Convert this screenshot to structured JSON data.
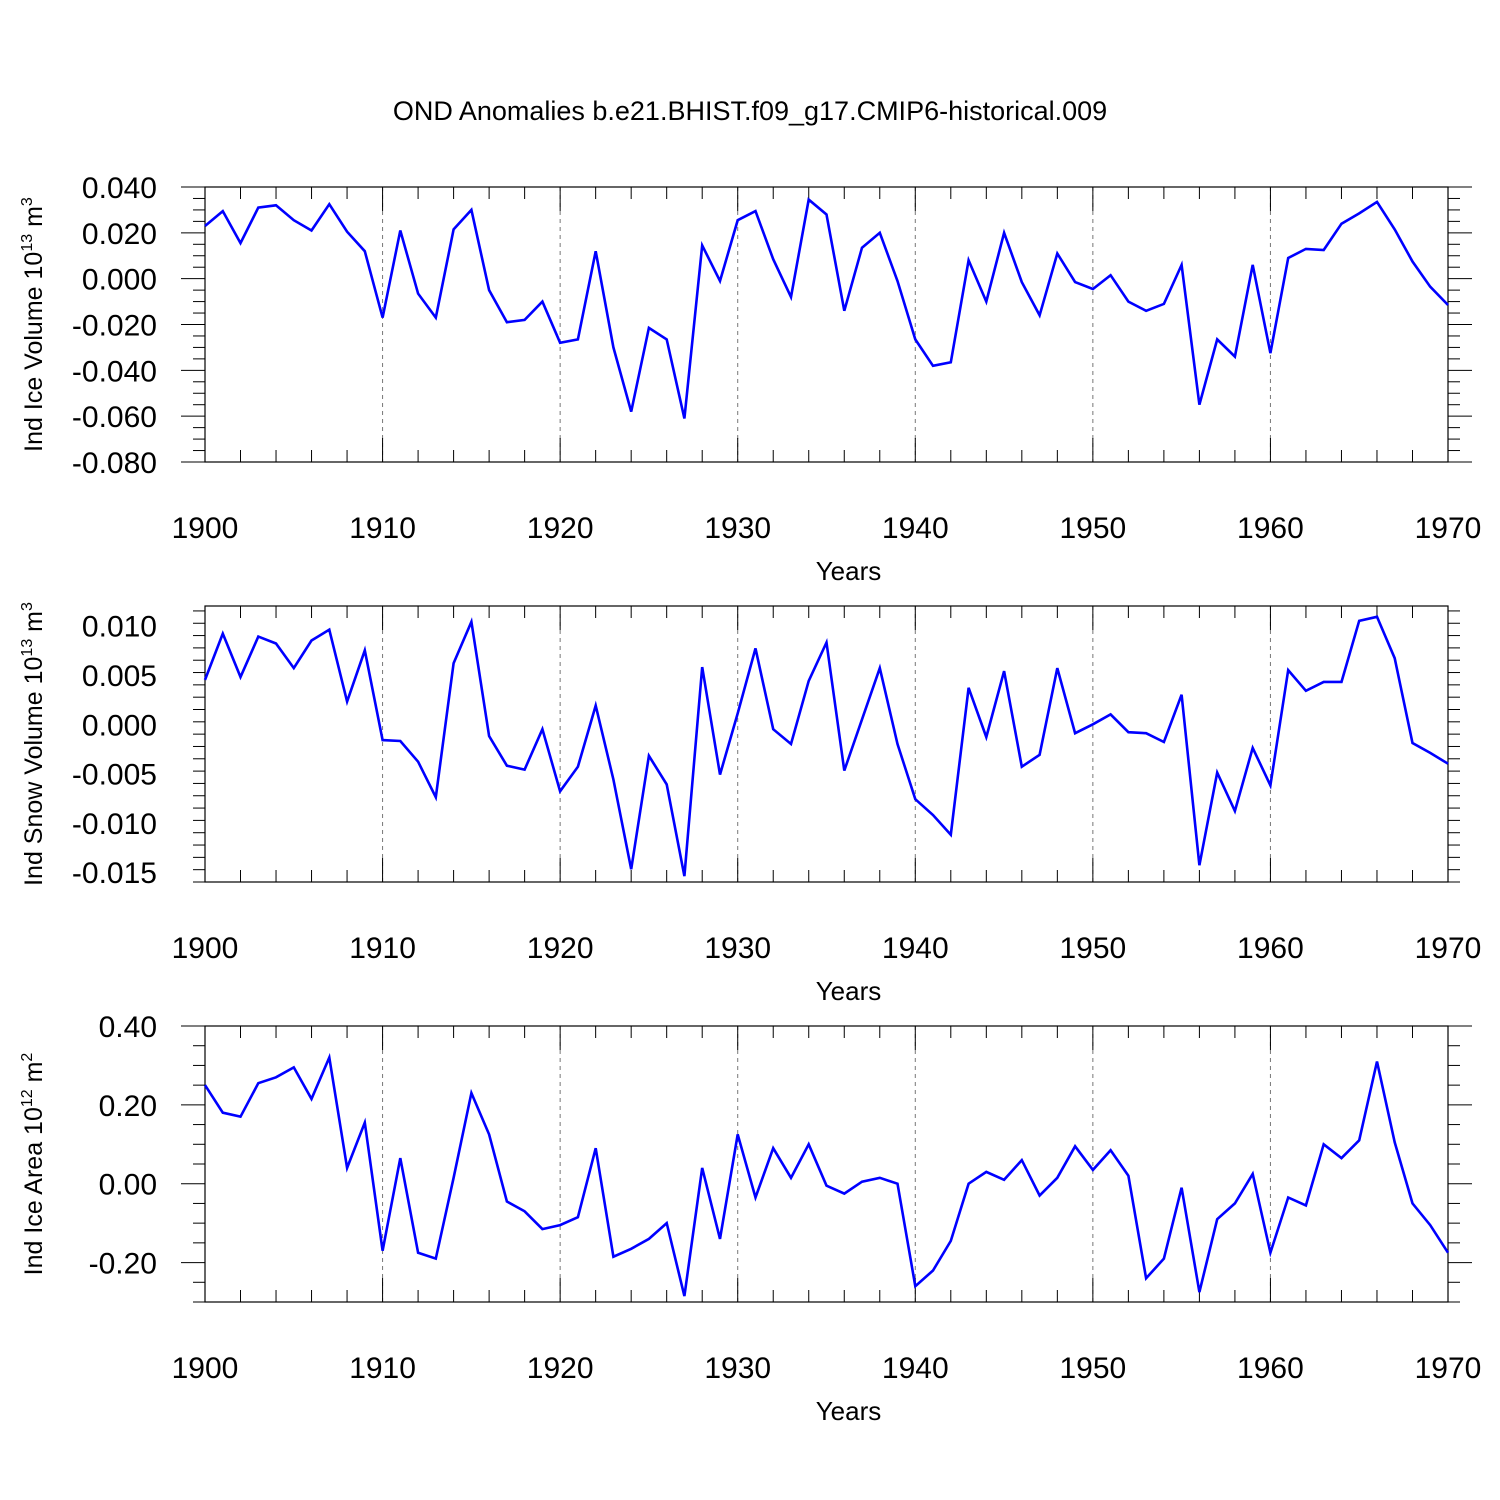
{
  "title": "OND Anomalies b.e21.BHIST.f09_g17.CMIP6-historical.009",
  "colors": {
    "line": "#0000ff",
    "axis": "#000000",
    "grid": "#777777"
  },
  "chart_data": [
    {
      "type": "line",
      "ylabel": {
        "main": "Ind Ice Volume 10",
        "exp": "13",
        "unit": "m",
        "unit_exp": "3"
      },
      "xlabel": "Years",
      "xlim": [
        1900,
        1970
      ],
      "ylim": [
        -0.08,
        0.04
      ],
      "yticks": [
        0.04,
        0.02,
        0.0,
        -0.02,
        -0.04,
        -0.06,
        -0.08
      ],
      "ytick_labels": [
        "0.040",
        "0.020",
        "0.000",
        "-0.020",
        "-0.040",
        "-0.060",
        "-0.080"
      ],
      "xticks": [
        1900,
        1910,
        1920,
        1930,
        1940,
        1950,
        1960,
        1970
      ],
      "xtick_labels": [
        "1900",
        "1910",
        "1920",
        "1930",
        "1940",
        "1950",
        "1960",
        "1970"
      ],
      "grid": "dashed vertical at x ticks",
      "series": [
        {
          "name": "Ind Ice Volume",
          "x_start": 1900,
          "values": [
            0.023,
            0.0295,
            0.0155,
            0.031,
            0.032,
            0.0255,
            0.021,
            0.0325,
            0.0205,
            0.012,
            -0.017,
            0.021,
            -0.0065,
            -0.017,
            0.0215,
            0.03,
            -0.005,
            -0.019,
            -0.018,
            -0.01,
            -0.028,
            -0.0265,
            0.012,
            -0.03,
            -0.058,
            -0.0215,
            -0.0265,
            -0.061,
            0.0145,
            -0.001,
            0.0255,
            0.0295,
            0.0085,
            -0.008,
            0.0345,
            0.028,
            -0.014,
            0.0135,
            0.02,
            -0.001,
            -0.0265,
            -0.038,
            -0.0365,
            0.008,
            -0.01,
            0.02,
            -0.0015,
            -0.016,
            0.011,
            -0.0015,
            -0.0045,
            0.0015,
            -0.01,
            -0.014,
            -0.011,
            0.006,
            -0.055,
            -0.0265,
            -0.034,
            0.006,
            -0.0325,
            0.009,
            0.013,
            0.0125,
            0.024,
            0.0285,
            0.0335,
            0.0215,
            0.0075,
            -0.0035,
            -0.0115
          ]
        }
      ]
    },
    {
      "type": "line",
      "ylabel": {
        "main": "Ind Snow Volume 10",
        "exp": "13",
        "unit": "m",
        "unit_exp": "3"
      },
      "xlabel": "Years",
      "xlim": [
        1900,
        1970
      ],
      "ylim": [
        -0.016,
        0.012
      ],
      "yticks": [
        0.01,
        0.005,
        0.0,
        -0.005,
        -0.01,
        -0.015
      ],
      "ytick_labels": [
        "0.010",
        "0.005",
        "0.000",
        "-0.005",
        "-0.010",
        "-0.015"
      ],
      "xticks": [
        1900,
        1910,
        1920,
        1930,
        1940,
        1950,
        1960,
        1970
      ],
      "xtick_labels": [
        "1900",
        "1910",
        "1920",
        "1930",
        "1940",
        "1950",
        "1960",
        "1970"
      ],
      "grid": "dashed vertical at x ticks",
      "series": [
        {
          "name": "Ind Snow Volume",
          "x_start": 1900,
          "values": [
            0.0045,
            0.0092,
            0.0048,
            0.0089,
            0.0082,
            0.0057,
            0.0085,
            0.0096,
            0.0023,
            0.0075,
            -0.0016,
            -0.0017,
            -0.0038,
            -0.0074,
            0.0062,
            0.0104,
            -0.0012,
            -0.0042,
            -0.0046,
            -0.0005,
            -0.0068,
            -0.0043,
            0.0019,
            -0.0056,
            -0.0147,
            -0.0032,
            -0.0061,
            -0.0154,
            0.0058,
            -0.0051,
            0.0011,
            0.0077,
            -0.0005,
            -0.002,
            0.0044,
            0.0083,
            -0.0047,
            0.0005,
            0.0057,
            -0.002,
            -0.0076,
            -0.0092,
            -0.0112,
            0.0037,
            -0.0013,
            0.0054,
            -0.0043,
            -0.0031,
            0.0057,
            -0.0009,
            0.0,
            0.001,
            -0.0008,
            -0.0009,
            -0.0018,
            0.003,
            -0.0143,
            -0.0049,
            -0.0088,
            -0.0024,
            -0.0062,
            0.0055,
            0.0034,
            0.0043,
            0.0043,
            0.0105,
            0.0109,
            0.0067,
            -0.0019,
            -0.0029,
            -0.004
          ]
        }
      ]
    },
    {
      "type": "line",
      "ylabel": {
        "main": "Ind Ice Area 10",
        "exp": "12",
        "unit": "m",
        "unit_exp": "2"
      },
      "xlabel": "Years",
      "xlim": [
        1900,
        1970
      ],
      "ylim": [
        -0.3,
        0.4
      ],
      "yticks": [
        0.4,
        0.2,
        0.0,
        -0.2
      ],
      "ytick_labels": [
        "0.40",
        "0.20",
        "0.00",
        "-0.20"
      ],
      "xticks": [
        1900,
        1910,
        1920,
        1930,
        1940,
        1950,
        1960,
        1970
      ],
      "xtick_labels": [
        "1900",
        "1910",
        "1920",
        "1930",
        "1940",
        "1950",
        "1960",
        "1970"
      ],
      "grid": "dashed vertical at x ticks",
      "series": [
        {
          "name": "Ind Ice Area",
          "x_start": 1900,
          "values": [
            0.25,
            0.18,
            0.17,
            0.255,
            0.27,
            0.295,
            0.215,
            0.32,
            0.04,
            0.155,
            -0.17,
            0.065,
            -0.175,
            -0.19,
            0.015,
            0.23,
            0.125,
            -0.045,
            -0.07,
            -0.115,
            -0.105,
            -0.085,
            0.09,
            -0.185,
            -0.165,
            -0.14,
            -0.1,
            -0.285,
            0.04,
            -0.14,
            0.125,
            -0.035,
            0.09,
            0.015,
            0.1,
            -0.005,
            -0.025,
            0.005,
            0.015,
            0.0,
            -0.26,
            -0.22,
            -0.145,
            0.0,
            0.03,
            0.01,
            0.06,
            -0.03,
            0.015,
            0.095,
            0.035,
            0.085,
            0.02,
            -0.24,
            -0.19,
            -0.01,
            -0.275,
            -0.09,
            -0.05,
            0.025,
            -0.175,
            -0.035,
            -0.055,
            0.1,
            0.065,
            0.11,
            0.31,
            0.105,
            -0.05,
            -0.105,
            -0.175
          ]
        }
      ]
    }
  ]
}
